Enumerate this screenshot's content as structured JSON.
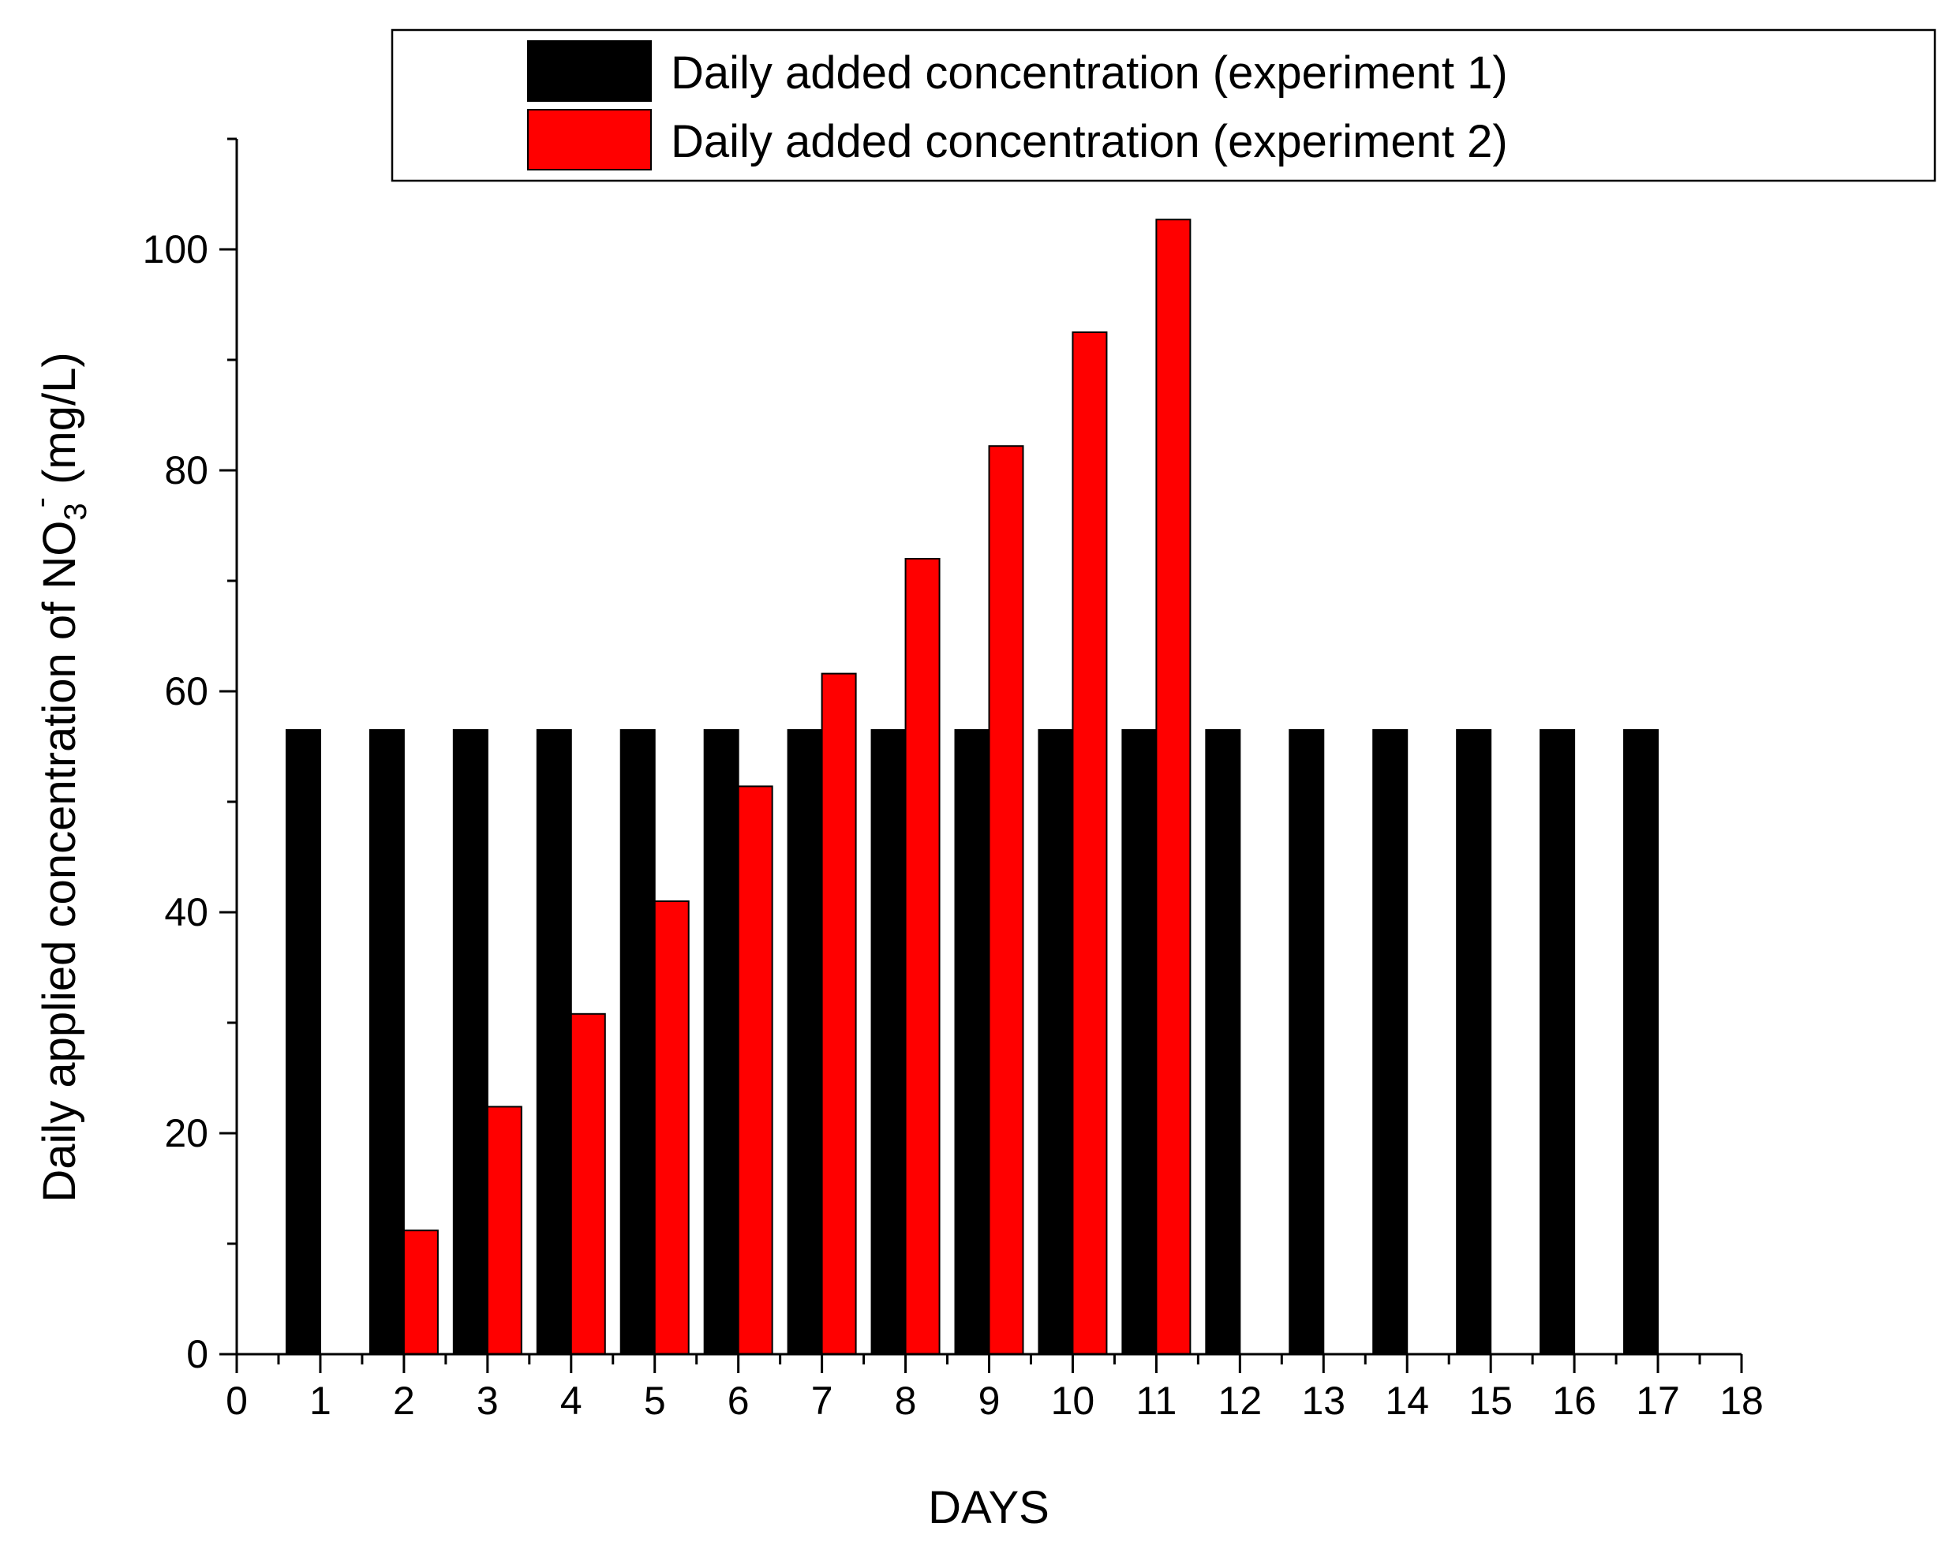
{
  "chart_data": {
    "type": "bar",
    "title": "",
    "xlabel": "DAYS",
    "ylabel_parts": {
      "base": "Daily applied concentration of NO",
      "subscript": "3",
      "superscript": "-",
      "unit": " (mg/L)"
    },
    "xlim": [
      0,
      18
    ],
    "ylim": [
      0,
      110
    ],
    "x_ticks": [
      0,
      1,
      2,
      3,
      4,
      5,
      6,
      7,
      8,
      9,
      10,
      11,
      12,
      13,
      14,
      15,
      16,
      17,
      18
    ],
    "y_ticks": [
      0,
      20,
      40,
      60,
      80,
      100
    ],
    "y_minor_step": 10,
    "x_minor_step": 0.5,
    "legend_position": "top-right",
    "categories": [
      1,
      2,
      3,
      4,
      5,
      6,
      7,
      8,
      9,
      10,
      11,
      12,
      13,
      14,
      15,
      16,
      17
    ],
    "series": [
      {
        "name": "Daily added concentration (experiment 1)",
        "color": "#000000",
        "values": [
          56.5,
          56.5,
          56.5,
          56.5,
          56.5,
          56.5,
          56.5,
          56.5,
          56.5,
          56.5,
          56.5,
          56.5,
          56.5,
          56.5,
          56.5,
          56.5,
          56.5
        ]
      },
      {
        "name": "Daily added concentration (experiment 2)",
        "color": "#ff0000",
        "values": [
          null,
          11.2,
          22.4,
          30.8,
          41.0,
          51.4,
          61.6,
          72.0,
          82.2,
          92.5,
          102.7,
          null,
          null,
          null,
          null,
          null,
          null
        ]
      }
    ]
  }
}
